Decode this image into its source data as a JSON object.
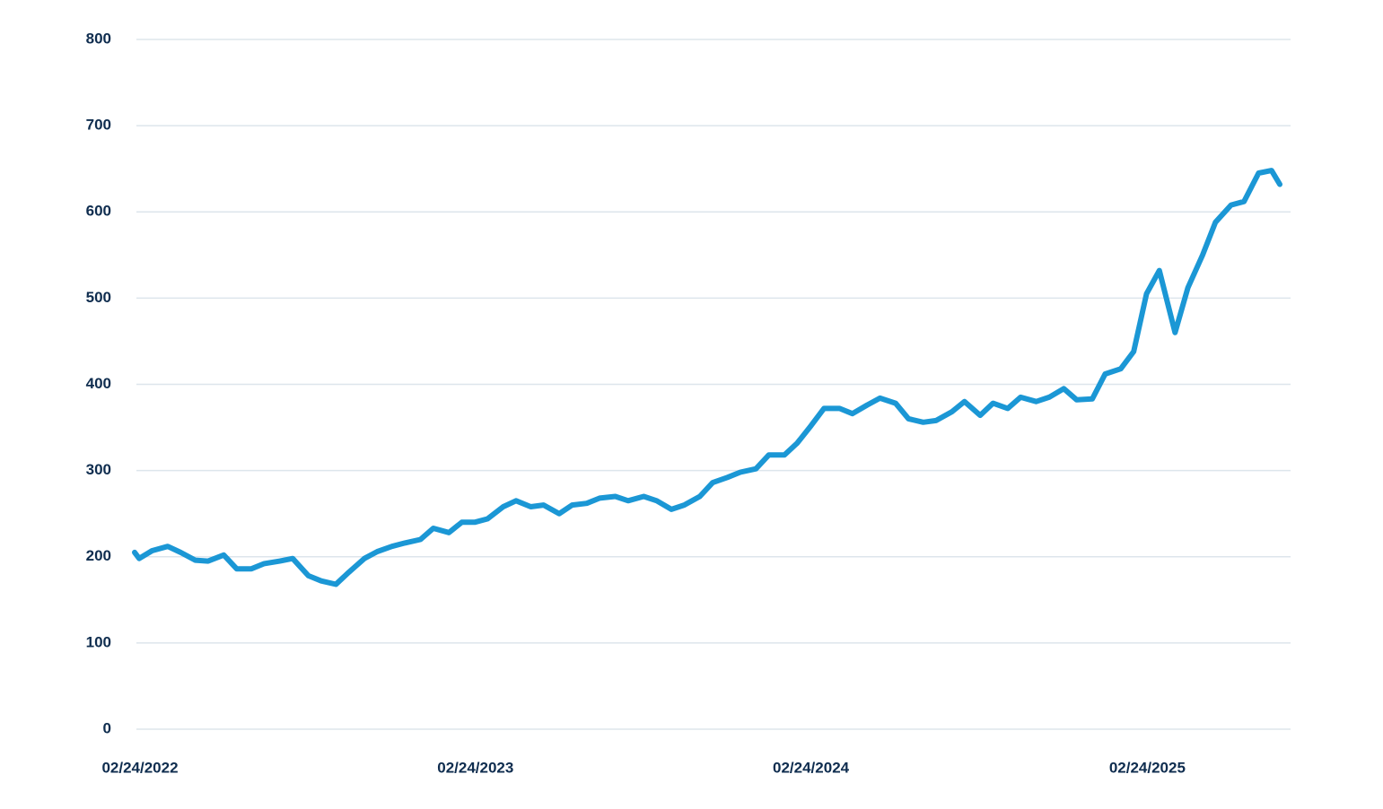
{
  "chart_data": {
    "type": "line",
    "x": [
      "02/24/2022",
      "03/01/2022",
      "03/15/2022",
      "04/01/2022",
      "04/15/2022",
      "05/01/2022",
      "05/15/2022",
      "06/01/2022",
      "06/15/2022",
      "07/01/2022",
      "07/15/2022",
      "08/01/2022",
      "08/15/2022",
      "09/01/2022",
      "09/15/2022",
      "10/01/2022",
      "10/15/2022",
      "11/01/2022",
      "11/15/2022",
      "12/01/2022",
      "12/15/2022",
      "01/01/2023",
      "01/15/2023",
      "02/01/2023",
      "02/15/2023",
      "03/01/2023",
      "03/15/2023",
      "04/01/2023",
      "04/15/2023",
      "05/01/2023",
      "05/15/2023",
      "06/01/2023",
      "06/15/2023",
      "07/01/2023",
      "07/15/2023",
      "08/01/2023",
      "08/15/2023",
      "09/01/2023",
      "09/15/2023",
      "10/01/2023",
      "10/15/2023",
      "11/01/2023",
      "11/15/2023",
      "12/01/2023",
      "12/15/2023",
      "01/01/2024",
      "01/15/2024",
      "02/01/2024",
      "02/15/2024",
      "03/01/2024",
      "03/15/2024",
      "04/01/2024",
      "04/15/2024",
      "05/01/2024",
      "05/15/2024",
      "06/01/2024",
      "06/15/2024",
      "07/01/2024",
      "07/15/2024",
      "08/01/2024",
      "08/15/2024",
      "09/01/2024",
      "09/15/2024",
      "10/01/2024",
      "10/15/2024",
      "11/01/2024",
      "11/15/2024",
      "12/01/2024",
      "12/15/2024",
      "01/01/2025",
      "01/15/2025",
      "02/01/2025",
      "02/15/2025",
      "03/01/2025",
      "03/15/2025",
      "04/01/2025",
      "04/15/2025",
      "05/01/2025",
      "05/15/2025",
      "06/01/2025",
      "06/15/2025",
      "07/01/2025",
      "07/15/2025",
      "07/24/2025"
    ],
    "values": [
      205,
      198,
      207,
      212,
      205,
      196,
      195,
      202,
      186,
      186,
      192,
      195,
      198,
      178,
      172,
      168,
      182,
      198,
      206,
      212,
      216,
      220,
      233,
      228,
      240,
      240,
      244,
      258,
      265,
      258,
      260,
      250,
      260,
      262,
      268,
      270,
      265,
      270,
      265,
      255,
      260,
      270,
      286,
      292,
      298,
      302,
      318,
      318,
      332,
      352,
      372,
      372,
      366,
      376,
      384,
      378,
      360,
      356,
      358,
      368,
      380,
      364,
      378,
      372,
      385,
      380,
      385,
      395,
      382,
      383,
      412,
      418,
      438,
      505,
      532,
      460,
      512,
      550,
      588,
      608,
      612,
      645,
      648,
      632
    ],
    "color": "#1b97d5",
    "xlim": [
      "02/24/2022",
      "07/24/2025"
    ],
    "xticks": [
      "02/24/2022",
      "02/24/2023",
      "02/24/2024",
      "02/24/2025"
    ],
    "ylim": [
      0,
      800
    ],
    "yticks": [
      0,
      100,
      200,
      300,
      400,
      500,
      600,
      700,
      800
    ],
    "grid": true
  }
}
